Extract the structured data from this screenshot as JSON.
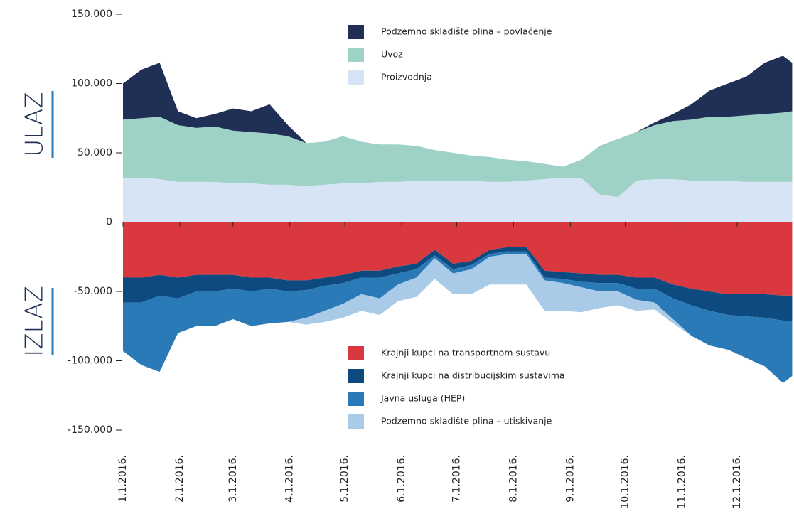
{
  "chart_data": {
    "type": "area",
    "section_labels": [
      "ULAZ",
      "IZLAZ"
    ],
    "x": [
      0,
      10,
      20,
      30,
      40,
      50,
      60,
      70,
      80,
      90,
      100,
      110,
      120,
      130,
      140,
      150,
      160,
      170,
      180,
      190,
      200,
      210,
      220,
      230,
      240,
      250,
      260,
      270,
      280,
      290,
      300,
      310,
      320,
      330,
      340,
      350,
      360,
      365
    ],
    "xlim": [
      0,
      366
    ],
    "xticks": [
      {
        "value": 0,
        "label": "1.1.2016."
      },
      {
        "value": 31,
        "label": "2.1.2016."
      },
      {
        "value": 60,
        "label": "3.1.2016."
      },
      {
        "value": 91,
        "label": "4.1.2016."
      },
      {
        "value": 121,
        "label": "5.1.2016."
      },
      {
        "value": 152,
        "label": "6.1.2016."
      },
      {
        "value": 182,
        "label": "7.1.2016."
      },
      {
        "value": 213,
        "label": "8.1.2016."
      },
      {
        "value": 244,
        "label": "9.1.2016."
      },
      {
        "value": 274,
        "label": "10.1.2016."
      },
      {
        "value": 305,
        "label": "11.1.2016."
      },
      {
        "value": 335,
        "label": "12.1.2016."
      }
    ],
    "ylim": [
      -150000,
      150000
    ],
    "yticks": [
      {
        "value": 150000,
        "label": "150.000"
      },
      {
        "value": 100000,
        "label": "100.000"
      },
      {
        "value": 50000,
        "label": "50.000"
      },
      0,
      {
        "value": -50000,
        "label": "-50.000"
      },
      {
        "value": -100000,
        "label": "-100.000"
      },
      {
        "value": -150000,
        "label": "-150.000"
      }
    ],
    "series": [
      {
        "name": "Proizvodnja",
        "color": "#d6e4f5",
        "values": [
          32000,
          32000,
          31000,
          29000,
          29000,
          29000,
          28000,
          28000,
          27000,
          27000,
          26000,
          27000,
          28000,
          28000,
          29000,
          29000,
          30000,
          30000,
          30000,
          30000,
          29000,
          29000,
          30000,
          31000,
          32000,
          32000,
          20000,
          18000,
          30000,
          31000,
          31000,
          30000,
          30000,
          30000,
          29000,
          29000,
          29000,
          29000
        ]
      },
      {
        "name": "Uvoz",
        "color": "#9ed2c6",
        "values": [
          42000,
          43000,
          45000,
          41000,
          39000,
          40000,
          38000,
          37000,
          37000,
          35000,
          31000,
          31000,
          34000,
          30000,
          27000,
          27000,
          25000,
          22000,
          20000,
          18000,
          18000,
          16000,
          14000,
          11000,
          8000,
          13000,
          35000,
          42000,
          35000,
          39000,
          42000,
          44000,
          46000,
          46000,
          48000,
          49000,
          50000,
          51000
        ]
      },
      {
        "name": "Podzemno skladište plina – povlačenje",
        "color": "#1f2f55",
        "values": [
          26000,
          35000,
          39000,
          10000,
          7000,
          9000,
          16000,
          15000,
          21000,
          8000,
          0,
          0,
          0,
          0,
          0,
          0,
          0,
          0,
          0,
          0,
          0,
          0,
          0,
          0,
          0,
          0,
          0,
          0,
          0,
          2000,
          5000,
          11000,
          19000,
          24000,
          28000,
          37000,
          41000,
          35000
        ]
      },
      {
        "name": "Krajnji kupci na transportnom sustavu",
        "color": "#d9393e",
        "values": [
          -40000,
          -40000,
          -38000,
          -40000,
          -38000,
          -38000,
          -38000,
          -40000,
          -40000,
          -42000,
          -42000,
          -40000,
          -38000,
          -35000,
          -35000,
          -32000,
          -30000,
          -20000,
          -30000,
          -28000,
          -20000,
          -18000,
          -18000,
          -35000,
          -36000,
          -37000,
          -38000,
          -38000,
          -40000,
          -40000,
          -45000,
          -48000,
          -50000,
          -52000,
          -52000,
          -52000,
          -53000,
          -53000
        ]
      },
      {
        "name": "Krajnji kupci na distribucijskim sustavima",
        "color": "#0d4a80",
        "values": [
          -18000,
          -18000,
          -15000,
          -15000,
          -12000,
          -12000,
          -10000,
          -10000,
          -8000,
          -8000,
          -7000,
          -6000,
          -6000,
          -5000,
          -5000,
          -5000,
          -4000,
          -4000,
          -4000,
          -3000,
          -3000,
          -3000,
          -3000,
          -5000,
          -5000,
          -6000,
          -6000,
          -6000,
          -8000,
          -8000,
          -10000,
          -12000,
          -14000,
          -15000,
          -16000,
          -17000,
          -18000,
          -18000
        ]
      },
      {
        "name": "Javna usluga (HEP)",
        "color": "#2a7ab8",
        "values": [
          -35000,
          -45000,
          -55000,
          -25000,
          -25000,
          -25000,
          -22000,
          -25000,
          -25000,
          -22000,
          -20000,
          -18000,
          -15000,
          -12000,
          -15000,
          -8000,
          -6000,
          -2000,
          -3000,
          -3000,
          -2000,
          -2000,
          -2000,
          -2000,
          -3000,
          -4000,
          -6000,
          -6000,
          -8000,
          -10000,
          -15000,
          -22000,
          -25000,
          -25000,
          -30000,
          -35000,
          -45000,
          -40000
        ]
      },
      {
        "name": "Podzemno skladište plina – utiskivanje",
        "color": "#a9cbe8",
        "values": [
          0,
          0,
          0,
          0,
          0,
          0,
          0,
          0,
          0,
          0,
          -5000,
          -8000,
          -10000,
          -12000,
          -12000,
          -12000,
          -14000,
          -15000,
          -15000,
          -18000,
          -20000,
          -22000,
          -22000,
          -22000,
          -20000,
          -18000,
          -12000,
          -10000,
          -8000,
          -5000,
          -3000,
          0,
          0,
          0,
          0,
          0,
          0,
          0
        ]
      }
    ]
  }
}
